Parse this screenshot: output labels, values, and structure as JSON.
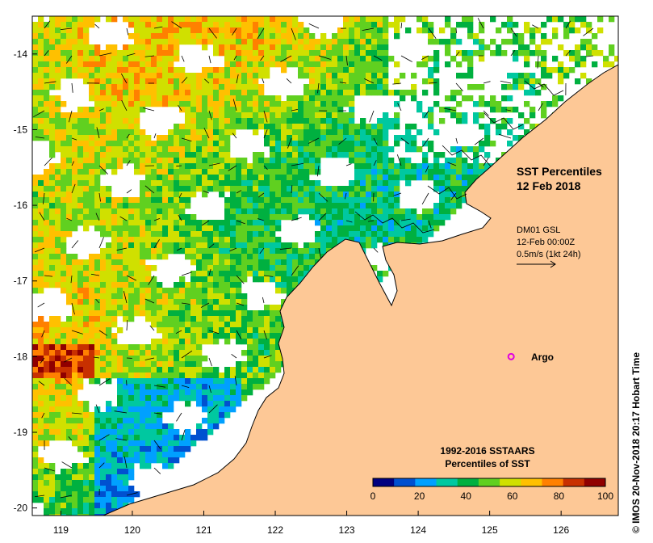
{
  "map": {
    "title_line1": "SST Percentiles",
    "title_line2": "12 Feb 2018",
    "x_ticks": [
      "119",
      "120",
      "121",
      "122",
      "123",
      "124",
      "125",
      "126"
    ],
    "y_ticks": [
      "-14",
      "-15",
      "-16",
      "-17",
      "-18",
      "-19",
      "-20"
    ],
    "lon_range": [
      118.6,
      126.8
    ],
    "lat_range": [
      -20.1,
      -13.5
    ],
    "current_info_line1": "DM01 GSL",
    "current_info_line2": "12-Feb 00:00Z",
    "current_info_line3": "0.5m/s (1kt 24h)",
    "argo_label": "Argo",
    "argo_position": {
      "lon": 125.3,
      "lat": -18.0
    },
    "colorbar_title_line1": "1992-2016 SSTAARS",
    "colorbar_title_line2": "Percentiles of SST",
    "colorbar_ticks": [
      "0",
      "20",
      "40",
      "60",
      "80",
      "100"
    ],
    "colorbar_colors": [
      "#000080",
      "#0050d0",
      "#00a0ff",
      "#00c8a0",
      "#00b040",
      "#60d020",
      "#d0e000",
      "#ffc000",
      "#ff8000",
      "#c83000",
      "#900000"
    ],
    "copyright": "© IMOS 20-Nov-2018 20:17 Hobart Time",
    "land_color": "#fdc896",
    "argo_color": "#e000e0"
  }
}
